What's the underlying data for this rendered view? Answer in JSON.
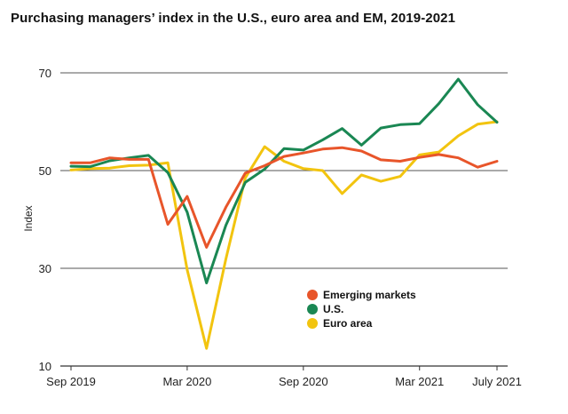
{
  "chart_data": {
    "type": "line",
    "title": "Purchasing managers’ index in the U.S., euro area and EM, 2019-2021",
    "ylabel": "Index",
    "xlabel": "",
    "ylim": [
      10,
      70
    ],
    "yticks": [
      10,
      30,
      50,
      70
    ],
    "x": [
      "Sep 2019",
      "Oct 2019",
      "Nov 2019",
      "Dec 2019",
      "Jan 2020",
      "Feb 2020",
      "Mar 2020",
      "Apr 2020",
      "May 2020",
      "Jun 2020",
      "Jul 2020",
      "Aug 2020",
      "Sep 2020",
      "Oct 2020",
      "Nov 2020",
      "Dec 2020",
      "Jan 2021",
      "Feb 2021",
      "Mar 2021",
      "Apr 2021",
      "May 2021",
      "Jun 2021",
      "Jul 2021"
    ],
    "xticks": [
      "Sep 2019",
      "Mar 2020",
      "Sep 2020",
      "Mar 2021",
      "July 2021"
    ],
    "grid": "horizontal",
    "legend_position": "bottom-right",
    "series": [
      {
        "name": "Emerging markets",
        "color": "#e8552a",
        "values": [
          51.6,
          51.6,
          52.6,
          52.3,
          52.3,
          39.0,
          44.7,
          34.3,
          42.5,
          49.5,
          51.0,
          52.9,
          53.6,
          54.4,
          54.7,
          54.0,
          52.2,
          51.9,
          52.7,
          53.3,
          52.6,
          50.7,
          51.9
        ]
      },
      {
        "name": "U.S.",
        "color": "#1a8753",
        "values": [
          50.9,
          50.8,
          52.0,
          52.6,
          53.1,
          49.6,
          41.5,
          27.0,
          38.8,
          47.6,
          50.3,
          54.5,
          54.2,
          56.3,
          58.6,
          55.2,
          58.7,
          59.4,
          59.6,
          63.7,
          68.7,
          63.5,
          59.9
        ]
      },
      {
        "name": "Euro area",
        "color": "#f2c40f",
        "values": [
          50.1,
          50.4,
          50.5,
          51.0,
          51.1,
          51.6,
          29.7,
          13.6,
          31.9,
          48.5,
          54.9,
          51.9,
          50.4,
          50.0,
          45.3,
          49.1,
          47.8,
          48.8,
          53.2,
          53.8,
          57.1,
          59.5,
          60.0
        ]
      }
    ]
  }
}
